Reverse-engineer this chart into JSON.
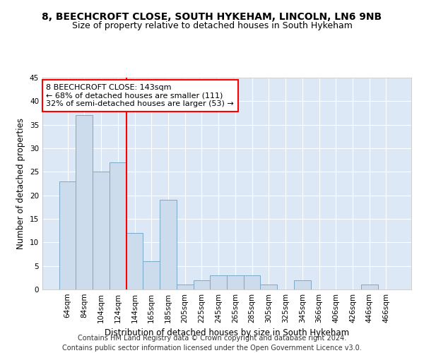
{
  "title_line1": "8, BEECHCROFT CLOSE, SOUTH HYKEHAM, LINCOLN, LN6 9NB",
  "title_line2": "Size of property relative to detached houses in South Hykeham",
  "xlabel": "Distribution of detached houses by size in South Hykeham",
  "ylabel": "Number of detached properties",
  "footer_line1": "Contains HM Land Registry data © Crown copyright and database right 2024.",
  "footer_line2": "Contains public sector information licensed under the Open Government Licence v3.0.",
  "bar_labels": [
    "64sqm",
    "84sqm",
    "104sqm",
    "124sqm",
    "144sqm",
    "165sqm",
    "185sqm",
    "205sqm",
    "225sqm",
    "245sqm",
    "265sqm",
    "285sqm",
    "305sqm",
    "325sqm",
    "345sqm",
    "366sqm",
    "406sqm",
    "426sqm",
    "446sqm",
    "466sqm"
  ],
  "bar_values": [
    23,
    37,
    25,
    27,
    12,
    6,
    19,
    1,
    2,
    3,
    3,
    3,
    1,
    0,
    2,
    0,
    0,
    0,
    1,
    0
  ],
  "bar_color": "#ccdcec",
  "bar_edge_color": "#7aaac8",
  "vline_color": "red",
  "vline_position": 3.5,
  "annotation_text": "8 BEECHCROFT CLOSE: 143sqm\n← 68% of detached houses are smaller (111)\n32% of semi-detached houses are larger (53) →",
  "annotation_box_color": "white",
  "annotation_box_edge": "red",
  "ylim": [
    0,
    45
  ],
  "yticks": [
    0,
    5,
    10,
    15,
    20,
    25,
    30,
    35,
    40,
    45
  ],
  "background_color": "#dce8f5",
  "grid_color": "white",
  "title_fontsize": 10,
  "subtitle_fontsize": 9,
  "axis_label_fontsize": 8.5,
  "tick_fontsize": 7.5,
  "annotation_fontsize": 8,
  "footer_fontsize": 7
}
